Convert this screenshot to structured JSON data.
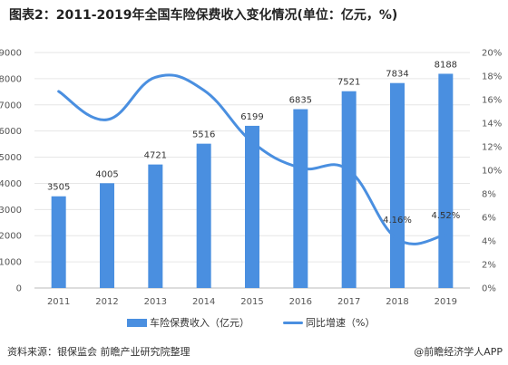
{
  "title": "图表2：2011-2019年全国车险保费收入变化情况(单位：亿元，%)",
  "legend": {
    "bar_label": "车险保费收入（亿元）",
    "line_label": "同比增速（%）"
  },
  "footer": {
    "source": "资料来源：银保监会 前瞻产业研究院整理",
    "credit": "@前瞻经济学人APP"
  },
  "colors": {
    "bar": "#4a8fe0",
    "line": "#4a8fe0",
    "grid": "#e6e6e6"
  },
  "chart_data": {
    "type": "bar",
    "categories": [
      "2011",
      "2012",
      "2013",
      "2014",
      "2015",
      "2016",
      "2017",
      "2018",
      "2019"
    ],
    "series": [
      {
        "name": "车险保费收入（亿元）",
        "type": "bar",
        "axis": "left",
        "values": [
          3505,
          4005,
          4721,
          5516,
          6199,
          6835,
          7521,
          7834,
          8188
        ]
      },
      {
        "name": "同比增速（%）",
        "type": "line",
        "axis": "right",
        "values": [
          16.7,
          14.3,
          17.9,
          16.8,
          12.4,
          10.2,
          10.0,
          4.16,
          4.52
        ]
      }
    ],
    "data_labels": {
      "bar": [
        "3505",
        "4005",
        "4721",
        "5516",
        "6199",
        "6835",
        "7521",
        "7834",
        "8188"
      ],
      "line": {
        "7": "4.16%",
        "8": "4.52%"
      }
    },
    "left_axis": {
      "ylim": [
        0,
        9000
      ],
      "ticks": [
        "0",
        "1000",
        "2000",
        "3000",
        "4000",
        "5000",
        "6000",
        "7000",
        "8000",
        "9000"
      ]
    },
    "right_axis": {
      "ylim": [
        0,
        20
      ],
      "ticks": [
        "0%",
        "2%",
        "4%",
        "6%",
        "8%",
        "10%",
        "12%",
        "14%",
        "16%",
        "18%",
        "20%"
      ]
    },
    "grid": true,
    "legend_position": "bottom"
  }
}
